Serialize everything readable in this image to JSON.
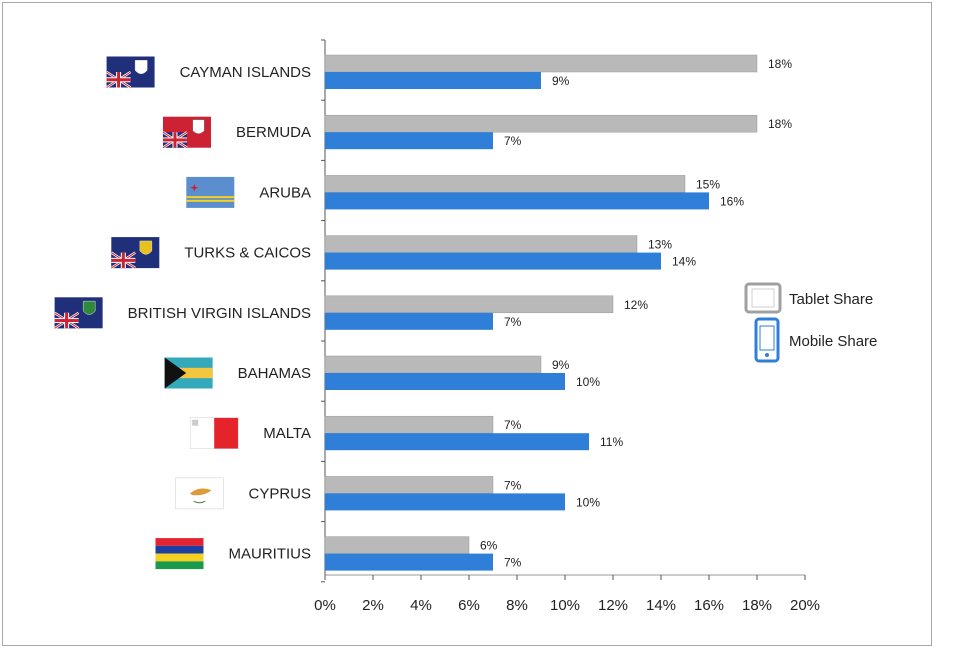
{
  "chart_data": {
    "type": "bar",
    "orientation": "horizontal",
    "categories": [
      "CAYMAN ISLANDS",
      "BERMUDA",
      "ARUBA",
      "TURKS & CAICOS",
      "BRITISH VIRGIN ISLANDS",
      "BAHAMAS",
      "MALTA",
      "CYPRUS",
      "MAURITIUS"
    ],
    "series": [
      {
        "name": "Tablet Share",
        "color": "#b9b9b9",
        "values": [
          18,
          18,
          15,
          13,
          12,
          9,
          7,
          7,
          6
        ],
        "labels": [
          "18%",
          "18%",
          "15%",
          "13%",
          "12%",
          "9%",
          "7%",
          "7%",
          "6%"
        ]
      },
      {
        "name": "Mobile Share",
        "color": "#2f7fd9",
        "values": [
          9,
          7,
          16,
          14,
          7,
          10,
          11,
          10,
          7
        ],
        "labels": [
          "9%",
          "7%",
          "16%",
          "14%",
          "7%",
          "10%",
          "11%",
          "10%",
          "7%"
        ]
      }
    ],
    "xlim": [
      0,
      20
    ],
    "xticks": [
      "0%",
      "2%",
      "4%",
      "6%",
      "8%",
      "10%",
      "12%",
      "14%",
      "16%",
      "18%",
      "20%"
    ],
    "grid": false,
    "legend_position": "right",
    "flags": [
      "cayman-flag",
      "bermuda-flag",
      "aruba-flag",
      "turks-caicos-flag",
      "british-virgin-islands-flag",
      "bahamas-flag",
      "malta-flag",
      "cyprus-flag",
      "mauritius-flag"
    ]
  }
}
